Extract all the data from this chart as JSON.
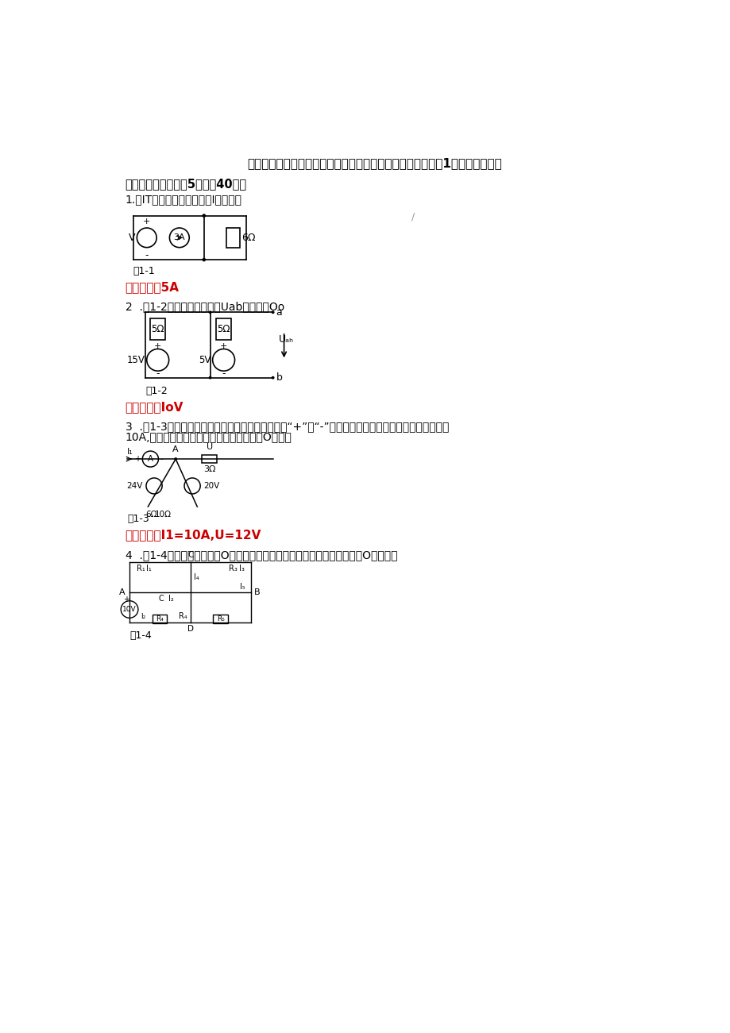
{
  "title": "国家开放大学一网一平台《电工电子技术》形考任务平时作业1网考题库及答案",
  "section1": "一、选择题（每小题5分，共40分）",
  "q1_text": "1.图IT所示的电路中，电流I为（）。",
  "q1_label": "图1-1",
  "q1_answer": "正确答案：5A",
  "q2_text": "2  .图1-2所示电路中，电压Uab的数值是Oo",
  "q2_label": "图1-2",
  "q2_answer": "正确答案：IoV",
  "q3_text_line1": "3  .图1-3所示的电路中，电流表的正、负接线端用“+”、“-”号标出，现电流表指针正向偏转，示数为",
  "q3_text_line2": "10A,有关电流、电压方向也表示在图中，则O正确。",
  "q3_label": "图1-3",
  "q3_answer": "正确答案：I1=10A,U=12V",
  "q4_text": "4  .图1-4所示的电路中包含O条支路，用支路电流法分析该电路，需要列写O个方程。",
  "q4_label": "图1-4",
  "bg_color": "#ffffff",
  "text_color": "#000000",
  "answer_color": "#cc0000",
  "title_fontsize": 11,
  "body_fontsize": 10,
  "answer_fontsize": 11,
  "slash_note": "/"
}
